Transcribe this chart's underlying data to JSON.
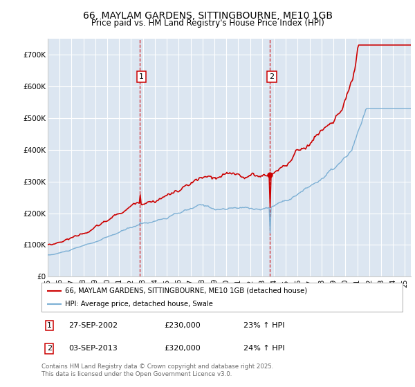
{
  "title": "66, MAYLAM GARDENS, SITTINGBOURNE, ME10 1GB",
  "subtitle": "Price paid vs. HM Land Registry's House Price Index (HPI)",
  "legend_line1": "66, MAYLAM GARDENS, SITTINGBOURNE, ME10 1GB (detached house)",
  "legend_line2": "HPI: Average price, detached house, Swale",
  "footer": "Contains HM Land Registry data © Crown copyright and database right 2025.\nThis data is licensed under the Open Government Licence v3.0.",
  "sale1_date": "27-SEP-2002",
  "sale1_price": "£230,000",
  "sale1_hpi": "23% ↑ HPI",
  "sale2_date": "03-SEP-2013",
  "sale2_price": "£320,000",
  "sale2_hpi": "24% ↑ HPI",
  "sale1_x": 2002.74,
  "sale2_x": 2013.67,
  "sale1_y": 230000,
  "sale2_y": 320000,
  "background_color": "#dce6f1",
  "line_color_red": "#cc0000",
  "line_color_blue": "#7bafd4",
  "vline_color": "#cc0000",
  "grid_color": "#ffffff",
  "ylim": [
    0,
    750000
  ],
  "xlim_start": 1995.0,
  "xlim_end": 2025.5,
  "title_fontsize": 10,
  "subtitle_fontsize": 8.5
}
